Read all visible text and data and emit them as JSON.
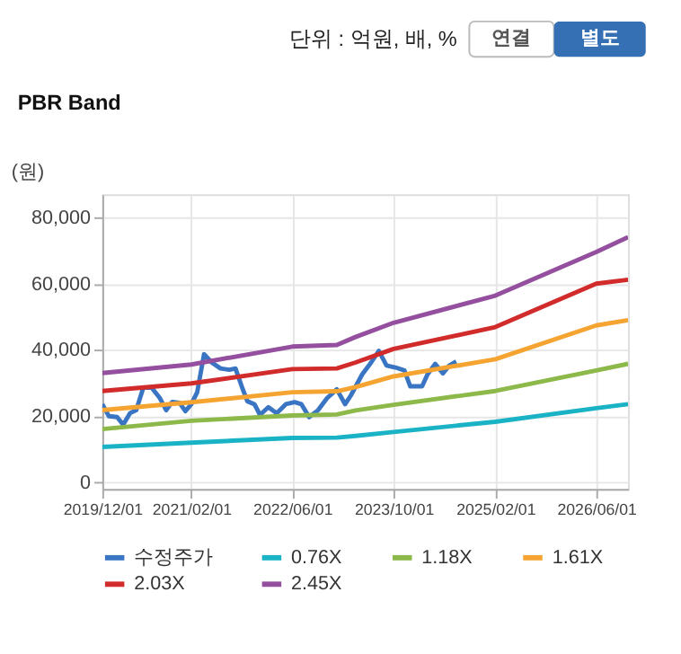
{
  "chart_data": {
    "type": "line",
    "title": "PBR Band",
    "ylabel": "(원)",
    "annotations": [
      "단위 : 억원, 배, %",
      "연결",
      "별도"
    ],
    "xlim": [
      "2019-12-01",
      "2026-11-01"
    ],
    "xticks": [
      {
        "value": "2019-12-01",
        "label": "2019/12/01"
      },
      {
        "value": "2021-02-01",
        "label": "2021/02/01"
      },
      {
        "value": "2022-06-01",
        "label": "2022/06/01"
      },
      {
        "value": "2023-10-01",
        "label": "2023/10/01"
      },
      {
        "value": "2025-02-01",
        "label": "2025/02/01"
      },
      {
        "value": "2026-06-01",
        "label": "2026/06/01"
      }
    ],
    "ylim": [
      -2000,
      87000
    ],
    "yticks": [
      {
        "value": 0,
        "label": "0"
      },
      {
        "value": 20000,
        "label": "20,000"
      },
      {
        "value": 40000,
        "label": "40,000"
      },
      {
        "value": 60000,
        "label": "60,000"
      },
      {
        "value": 80000,
        "label": "80,000"
      }
    ],
    "grid": true,
    "legend": "bottom",
    "marker": "none",
    "line_style": "solid",
    "series": [
      {
        "name": "수정주가",
        "color": "#3a75c4",
        "x": [
          "2019-12-01",
          "2020-01-01",
          "2020-02-10",
          "2020-03-10",
          "2020-04-12",
          "2020-05-12",
          "2020-06-15",
          "2020-07-25",
          "2020-09-03",
          "2020-10-03",
          "2020-11-01",
          "2020-12-06",
          "2021-01-03",
          "2021-02-01",
          "2021-03-01",
          "2021-04-03",
          "2021-05-10",
          "2021-06-21",
          "2021-08-03",
          "2021-09-01",
          "2021-10-01",
          "2021-10-28",
          "2021-12-01",
          "2021-12-28",
          "2022-02-06",
          "2022-03-18",
          "2022-05-01",
          "2022-06-12",
          "2022-07-15",
          "2022-08-21",
          "2022-10-03",
          "2022-11-15",
          "2023-01-01",
          "2023-02-10",
          "2023-03-10",
          "2023-05-03",
          "2023-06-15",
          "2023-07-22",
          "2023-08-28",
          "2023-10-10",
          "2023-11-22",
          "2023-12-20",
          "2024-02-15",
          "2024-03-12",
          "2024-04-18",
          "2024-05-25",
          "2024-06-25",
          "2024-07-28"
        ],
        "values": [
          23600,
          20000,
          19700,
          17400,
          20900,
          21800,
          28600,
          28600,
          25400,
          21800,
          24300,
          24000,
          21500,
          23600,
          27200,
          38700,
          36200,
          34400,
          34000,
          34400,
          29000,
          24500,
          23600,
          20400,
          22700,
          20900,
          23600,
          24200,
          23600,
          19700,
          21800,
          25400,
          28100,
          23600,
          26300,
          32600,
          36200,
          39700,
          35300,
          34700,
          33800,
          29000,
          29000,
          32600,
          35800,
          32900,
          35300,
          36500
        ]
      },
      {
        "name": "0.76X",
        "color": "#1ab3c6",
        "x": [
          "2019-12-01",
          "2021-02-01",
          "2022-06-01",
          "2023-01-01",
          "2023-04-01",
          "2023-10-01",
          "2025-02-01",
          "2026-06-01",
          "2026-11-01"
        ],
        "values": [
          10700,
          12000,
          13400,
          13500,
          14000,
          15200,
          18300,
          22400,
          23600
        ]
      },
      {
        "name": "1.18X",
        "color": "#8db84a",
        "x": [
          "2019-12-01",
          "2021-02-01",
          "2022-06-01",
          "2023-01-01",
          "2023-04-01",
          "2023-10-01",
          "2025-02-01",
          "2026-06-01",
          "2026-11-01"
        ],
        "values": [
          16100,
          18600,
          20200,
          20500,
          21700,
          23400,
          27600,
          33800,
          35800
        ]
      },
      {
        "name": "1.61X",
        "color": "#f5a431",
        "x": [
          "2019-12-01",
          "2021-02-01",
          "2022-06-01",
          "2023-01-01",
          "2023-04-01",
          "2023-10-01",
          "2025-02-01",
          "2026-06-01",
          "2026-11-01"
        ],
        "values": [
          21800,
          24200,
          27200,
          27500,
          28800,
          32000,
          37200,
          47400,
          49000
        ]
      },
      {
        "name": "2.03X",
        "color": "#d12b2b",
        "x": [
          "2019-12-01",
          "2021-02-01",
          "2022-06-01",
          "2023-01-01",
          "2023-04-01",
          "2023-10-01",
          "2025-02-01",
          "2026-06-01",
          "2026-11-01"
        ],
        "values": [
          27600,
          29900,
          34200,
          34400,
          36200,
          40300,
          46900,
          60000,
          61200
        ]
      },
      {
        "name": "2.45X",
        "color": "#944f9f",
        "x": [
          "2019-12-01",
          "2021-02-01",
          "2022-06-01",
          "2023-01-01",
          "2023-04-01",
          "2023-10-01",
          "2025-02-01",
          "2026-06-01",
          "2026-11-01"
        ],
        "values": [
          33000,
          35600,
          41000,
          41500,
          43900,
          48200,
          56400,
          69600,
          74100
        ]
      }
    ]
  }
}
